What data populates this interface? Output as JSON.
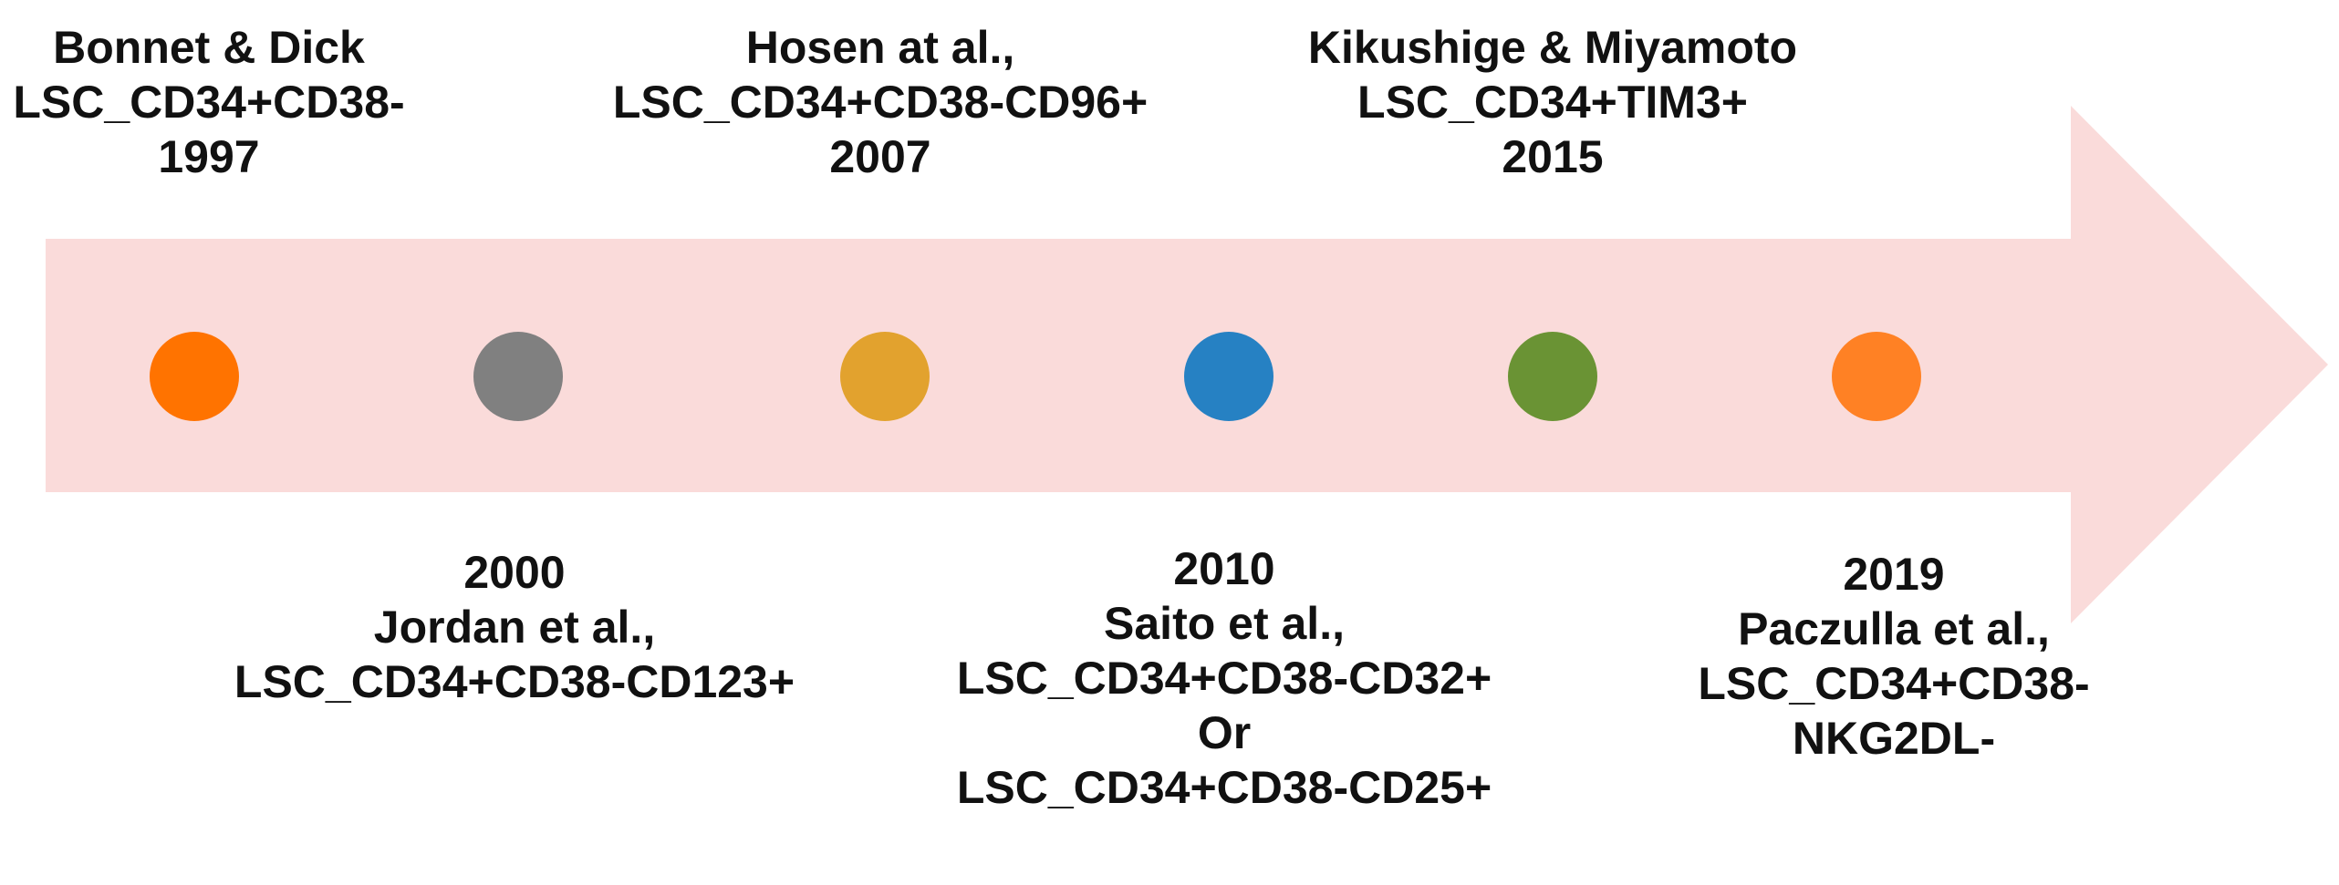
{
  "arrow_color": "#FADBDA",
  "milestones": [
    {
      "color": "#FF7300",
      "lines": [
        "Bonnet & Dick",
        "LSC_CD34+CD38-",
        "1997"
      ]
    },
    {
      "color": "#808080",
      "lines": [
        "2000",
        "Jordan et al.,",
        "LSC_CD34+CD38-CD123+"
      ]
    },
    {
      "color": "#E2A22E",
      "lines": [
        "Hosen at al.,",
        "LSC_CD34+CD38-CD96+",
        "2007"
      ]
    },
    {
      "color": "#2681C3",
      "lines": [
        "2010",
        "Saito et al.,",
        "LSC_CD34+CD38-CD32+",
        "Or",
        "LSC_CD34+CD38-CD25+"
      ]
    },
    {
      "color": "#6A9334",
      "lines": [
        "Kikushige & Miyamoto",
        "LSC_CD34+TIM3+",
        "2015"
      ]
    },
    {
      "color": "#FF8124",
      "lines": [
        "2019",
        "Paczulla et al.,",
        "LSC_CD34+CD38-",
        "NKG2DL-"
      ]
    }
  ]
}
